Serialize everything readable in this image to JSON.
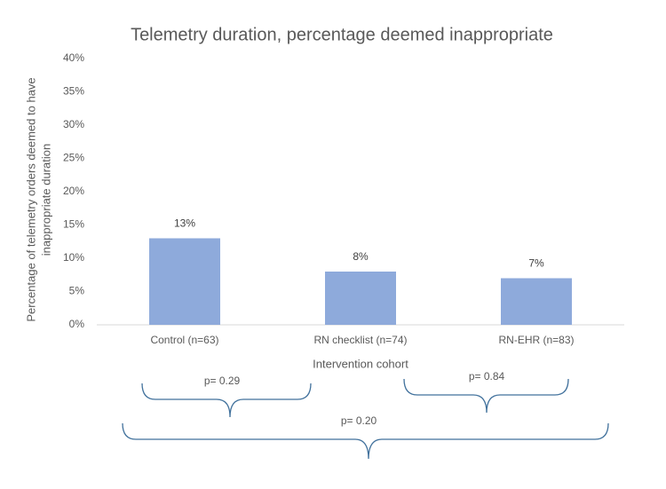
{
  "chart_data": {
    "type": "bar",
    "title": "Telemetry duration, percentage deemed inappropriate",
    "x_label": "Intervention cohort",
    "y_label": [
      "Percentage of telemetry orders deemed to have",
      "inappropriate duration"
    ],
    "categories": [
      "Control (n=63)",
      "RN checklist (n=74)",
      "RN-EHR (n=83)"
    ],
    "values": [
      13,
      8,
      7
    ],
    "value_labels": [
      "13%",
      "8%",
      "7%"
    ],
    "color": "#8eaadb",
    "ylim": [
      0,
      40
    ],
    "yticks": [
      {
        "value": 0,
        "label": "0%"
      },
      {
        "value": 5,
        "label": "5%"
      },
      {
        "value": 10,
        "label": "10%"
      },
      {
        "value": 15,
        "label": "15%"
      },
      {
        "value": 20,
        "label": "20%"
      },
      {
        "value": 25,
        "label": "25%"
      },
      {
        "value": 30,
        "label": "30%"
      },
      {
        "value": 35,
        "label": "35%"
      },
      {
        "value": 40,
        "label": "40%"
      }
    ],
    "grid": false,
    "annotations": [
      "p= 0.29",
      "p= 0.84",
      "p= 0.20"
    ]
  }
}
